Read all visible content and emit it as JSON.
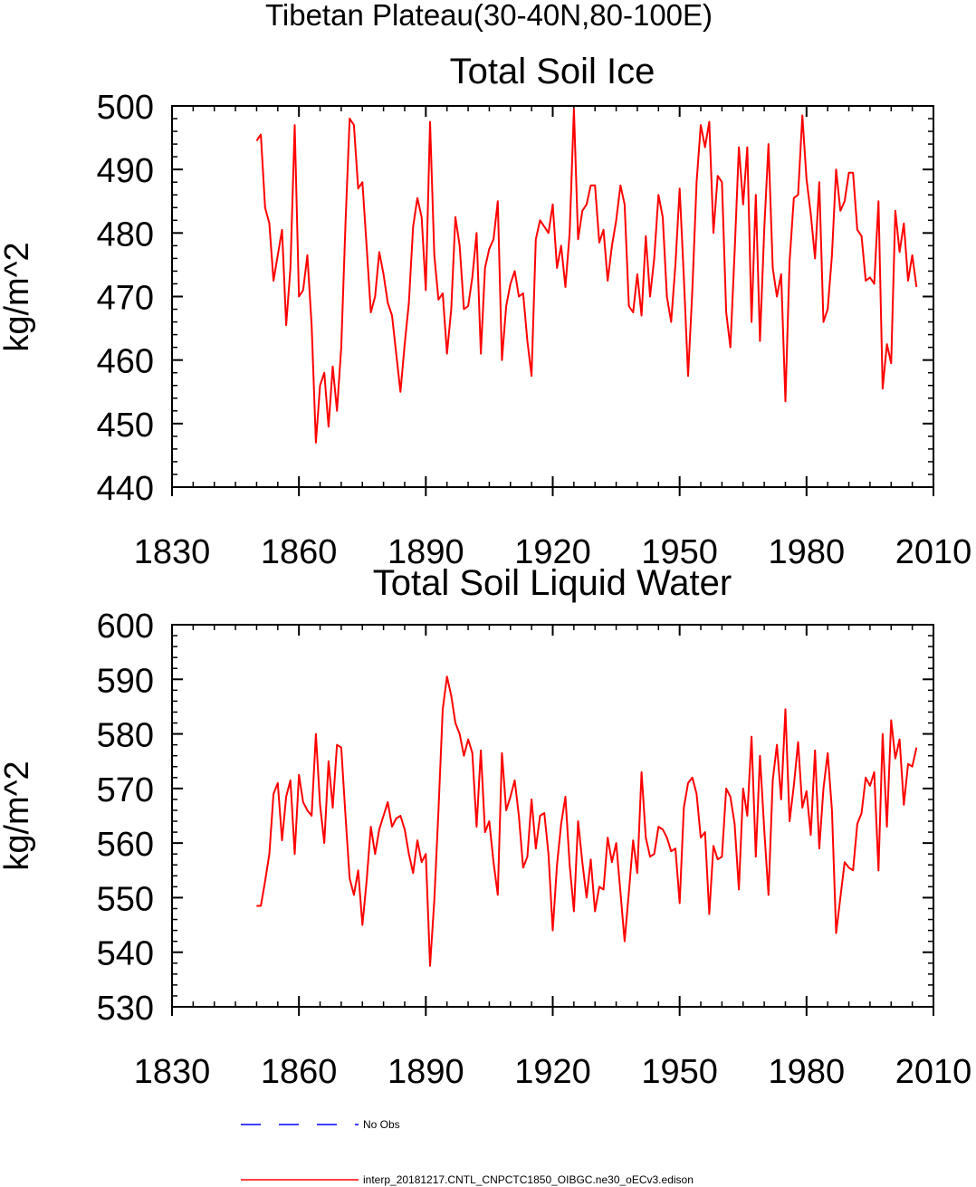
{
  "suptitle": "Tibetan Plateau(30-40N,80-100E)",
  "chart_data": [
    {
      "type": "line",
      "title": "Total Soil Ice",
      "xlabel": "",
      "ylabel": "kg/m^2",
      "xlim": [
        1830,
        2010
      ],
      "ylim": [
        440,
        500
      ],
      "xticks": [
        1830,
        1860,
        1890,
        1920,
        1950,
        1980,
        2010
      ],
      "yticks": [
        440,
        450,
        460,
        470,
        480,
        490,
        500
      ],
      "series": [
        {
          "name": "interp_20181217.CNTL_CNPCTC1850_OIBGC.ne30_oECv3.edison",
          "color": "#ff0000",
          "x": [
            1850,
            1851,
            1852,
            1853,
            1854,
            1855,
            1856,
            1857,
            1858,
            1859,
            1860,
            1861,
            1862,
            1863,
            1864,
            1865,
            1866,
            1867,
            1868,
            1869,
            1870,
            1871,
            1872,
            1873,
            1874,
            1875,
            1876,
            1877,
            1878,
            1879,
            1880,
            1881,
            1882,
            1883,
            1884,
            1885,
            1886,
            1887,
            1888,
            1889,
            1890,
            1891,
            1892,
            1893,
            1894,
            1895,
            1896,
            1897,
            1898,
            1899,
            1900,
            1901,
            1902,
            1903,
            1904,
            1905,
            1906,
            1907,
            1908,
            1909,
            1910,
            1911,
            1912,
            1913,
            1914,
            1915,
            1916,
            1917,
            1918,
            1919,
            1920,
            1921,
            1922,
            1923,
            1924,
            1925,
            1926,
            1927,
            1928,
            1929,
            1930,
            1931,
            1932,
            1933,
            1934,
            1935,
            1936,
            1937,
            1938,
            1939,
            1940,
            1941,
            1942,
            1943,
            1944,
            1945,
            1946,
            1947,
            1948,
            1949,
            1950,
            1951,
            1952,
            1953,
            1954,
            1955,
            1956,
            1957,
            1958,
            1959,
            1960,
            1961,
            1962,
            1963,
            1964,
            1965,
            1966,
            1967,
            1968,
            1969,
            1970,
            1971,
            1972,
            1973,
            1974,
            1975,
            1976,
            1977,
            1978,
            1979,
            1980,
            1981,
            1982,
            1983,
            1984,
            1985,
            1986,
            1987,
            1988,
            1989,
            1990,
            1991,
            1992,
            1993,
            1994,
            1995,
            1996,
            1997,
            1998,
            1999,
            2000,
            2001,
            2002,
            2003,
            2004,
            2005,
            2006
          ],
          "values": [
            494.5,
            495.5,
            484,
            481.5,
            472.5,
            476.5,
            480.5,
            465.5,
            474.5,
            497,
            470,
            471,
            476.5,
            465.5,
            447,
            456,
            458,
            449.5,
            459,
            452,
            462,
            481.5,
            498,
            497,
            487,
            488,
            478,
            467.5,
            470,
            477,
            473.5,
            469,
            467,
            461,
            455,
            462.5,
            469,
            481,
            485.5,
            482.5,
            471,
            497.5,
            476.5,
            469.5,
            470.5,
            461,
            468,
            482.5,
            478,
            468,
            468.5,
            473,
            480,
            461,
            474.5,
            477.5,
            479,
            485,
            460,
            468.5,
            472,
            474,
            470,
            470.5,
            463,
            457.5,
            479,
            482,
            481,
            480,
            484.5,
            474.5,
            478,
            471.5,
            480,
            499.5,
            479,
            483.5,
            484.5,
            487.5,
            487.5,
            478.5,
            480.5,
            472.5,
            478,
            482,
            487.5,
            484.5,
            468.5,
            467.5,
            473.5,
            467,
            479.5,
            470,
            476,
            486,
            482.5,
            470,
            466,
            475,
            487,
            473,
            457.5,
            471,
            488,
            497,
            493.5,
            497.5,
            480,
            489,
            488,
            467.5,
            462,
            477,
            493.5,
            484.5,
            493.5,
            466,
            486,
            463,
            480.5,
            494,
            474.5,
            470,
            473.5,
            453.5,
            475.5,
            485.5,
            486,
            498.5,
            488.5,
            483,
            476,
            488,
            466,
            468,
            476.5,
            490,
            483.5,
            485,
            489.5,
            489.5,
            480.5,
            479.5,
            472.5,
            473,
            472,
            485,
            455.5,
            462.5,
            459.5,
            483.5,
            477,
            481.5,
            472.5,
            476.5,
            471.5
          ]
        }
      ]
    },
    {
      "type": "line",
      "title": "Total Soil Liquid Water",
      "xlabel": "",
      "ylabel": "kg/m^2",
      "xlim": [
        1830,
        2010
      ],
      "ylim": [
        530,
        600
      ],
      "xticks": [
        1830,
        1860,
        1890,
        1920,
        1950,
        1980,
        2010
      ],
      "yticks": [
        530,
        540,
        550,
        560,
        570,
        580,
        590,
        600
      ],
      "series": [
        {
          "name": "interp_20181217.CNTL_CNPCTC1850_OIBGC.ne30_oECv3.edison",
          "color": "#ff0000",
          "x": [
            1850,
            1851,
            1852,
            1853,
            1854,
            1855,
            1856,
            1857,
            1858,
            1859,
            1860,
            1861,
            1862,
            1863,
            1864,
            1865,
            1866,
            1867,
            1868,
            1869,
            1870,
            1871,
            1872,
            1873,
            1874,
            1875,
            1876,
            1877,
            1878,
            1879,
            1880,
            1881,
            1882,
            1883,
            1884,
            1885,
            1886,
            1887,
            1888,
            1889,
            1890,
            1891,
            1892,
            1893,
            1894,
            1895,
            1896,
            1897,
            1898,
            1899,
            1900,
            1901,
            1902,
            1903,
            1904,
            1905,
            1906,
            1907,
            1908,
            1909,
            1910,
            1911,
            1912,
            1913,
            1914,
            1915,
            1916,
            1917,
            1918,
            1919,
            1920,
            1921,
            1922,
            1923,
            1924,
            1925,
            1926,
            1927,
            1928,
            1929,
            1930,
            1931,
            1932,
            1933,
            1934,
            1935,
            1936,
            1937,
            1938,
            1939,
            1940,
            1941,
            1942,
            1943,
            1944,
            1945,
            1946,
            1947,
            1948,
            1949,
            1950,
            1951,
            1952,
            1953,
            1954,
            1955,
            1956,
            1957,
            1958,
            1959,
            1960,
            1961,
            1962,
            1963,
            1964,
            1965,
            1966,
            1967,
            1968,
            1969,
            1970,
            1971,
            1972,
            1973,
            1974,
            1975,
            1976,
            1977,
            1978,
            1979,
            1980,
            1981,
            1982,
            1983,
            1984,
            1985,
            1986,
            1987,
            1988,
            1989,
            1990,
            1991,
            1992,
            1993,
            1994,
            1995,
            1996,
            1997,
            1998,
            1999,
            2000,
            2001,
            2002,
            2003,
            2004,
            2005,
            2006
          ],
          "values": [
            548.5,
            548.5,
            553,
            558,
            569,
            571,
            560.5,
            568.5,
            571.5,
            558,
            572.5,
            567.5,
            566,
            565,
            580,
            567,
            560,
            575,
            566.5,
            578,
            577.5,
            565,
            553.5,
            550.5,
            555,
            545,
            553,
            563,
            558,
            562.5,
            565,
            567.5,
            563,
            564.5,
            565,
            562.5,
            558,
            554.5,
            560.5,
            556.5,
            558,
            537.5,
            549.5,
            566,
            584.5,
            590.5,
            587,
            582,
            580,
            576,
            579,
            576.5,
            563,
            577,
            562,
            564,
            556.5,
            550.5,
            576.5,
            566,
            568.5,
            571.5,
            565,
            555.5,
            557.5,
            568,
            559,
            565,
            565.5,
            558,
            544,
            556,
            563.5,
            568.5,
            556,
            547.5,
            564,
            556.5,
            550,
            557,
            547.5,
            552,
            551.5,
            561,
            556.5,
            560,
            551,
            542,
            551,
            560.5,
            554.5,
            573,
            561,
            557.5,
            558,
            563,
            562.5,
            561,
            558.5,
            559,
            549,
            566.5,
            571,
            572,
            569,
            561,
            562,
            547,
            559.5,
            557,
            557.5,
            570,
            568.5,
            563.5,
            551.5,
            570,
            565,
            579.5,
            557.5,
            576,
            562.5,
            550.5,
            571.5,
            578,
            568,
            584.5,
            564,
            570.5,
            578.5,
            566.5,
            569.5,
            561.5,
            577,
            559,
            570,
            576.5,
            566,
            543.5,
            550,
            556.5,
            555.5,
            555,
            563.5,
            565.5,
            572,
            570.5,
            573,
            555,
            580,
            563,
            582.5,
            575.5,
            579,
            567,
            574.5,
            574,
            577.5
          ]
        }
      ]
    }
  ],
  "legend": [
    {
      "label": "No Obs",
      "color": "#0000ff",
      "style": "dashed"
    },
    {
      "label": "interp_20181217.CNTL_CNPCTC1850_OIBGC.ne30_oECv3.edison",
      "color": "#ff0000",
      "style": "solid"
    }
  ]
}
